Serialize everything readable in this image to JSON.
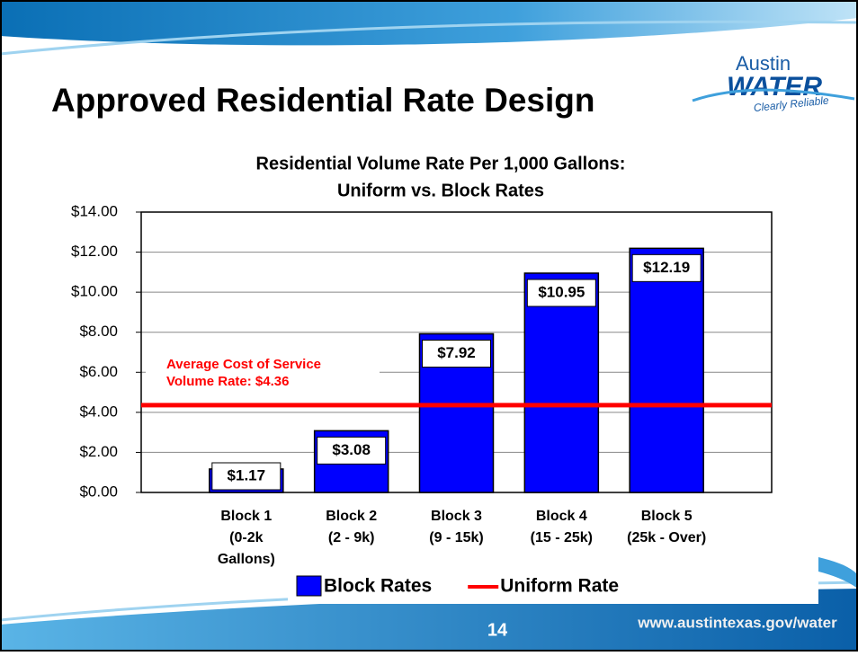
{
  "slide": {
    "title": "Approved Residential Rate Design",
    "logo": {
      "line1": "Austin",
      "line2": "WATER",
      "tagline": "Clearly Reliable"
    },
    "page_number": "14",
    "url": "www.austintexas.gov/water"
  },
  "chart_data": {
    "type": "bar",
    "title": [
      "Residential Volume Rate Per 1,000 Gallons:",
      "Uniform vs. Block Rates"
    ],
    "categories": [
      [
        "Block 1",
        "(0-2k",
        "Gallons)"
      ],
      [
        "Block 2",
        "(2 - 9k)"
      ],
      [
        "Block 3",
        "(9 - 15k)"
      ],
      [
        "Block 4",
        "(15 - 25k)"
      ],
      [
        "Block 5",
        "(25k - Over)"
      ]
    ],
    "series": [
      {
        "name": "Block Rates",
        "color": "#0000ff",
        "values": [
          1.17,
          3.08,
          7.92,
          10.95,
          12.19
        ],
        "value_labels": [
          "$1.17",
          "$3.08",
          "$7.92",
          "$10.95",
          "$12.19"
        ]
      }
    ],
    "reference_lines": [
      {
        "name": "Uniform Rate",
        "value": 4.36,
        "color": "#ff0000",
        "label": [
          "Average Cost of Service",
          "Volume Rate:  $4.36"
        ]
      }
    ],
    "ylim": [
      0,
      14
    ],
    "yticks": [
      {
        "value": 0,
        "label": "$0.00"
      },
      {
        "value": 2,
        "label": "$2.00"
      },
      {
        "value": 4,
        "label": "$4.00"
      },
      {
        "value": 6,
        "label": "$6.00"
      },
      {
        "value": 8,
        "label": "$8.00"
      },
      {
        "value": 10,
        "label": "$10.00"
      },
      {
        "value": 12,
        "label": "$12.00"
      },
      {
        "value": 14,
        "label": "$14.00"
      }
    ],
    "grid": true,
    "legend": "bottom"
  }
}
